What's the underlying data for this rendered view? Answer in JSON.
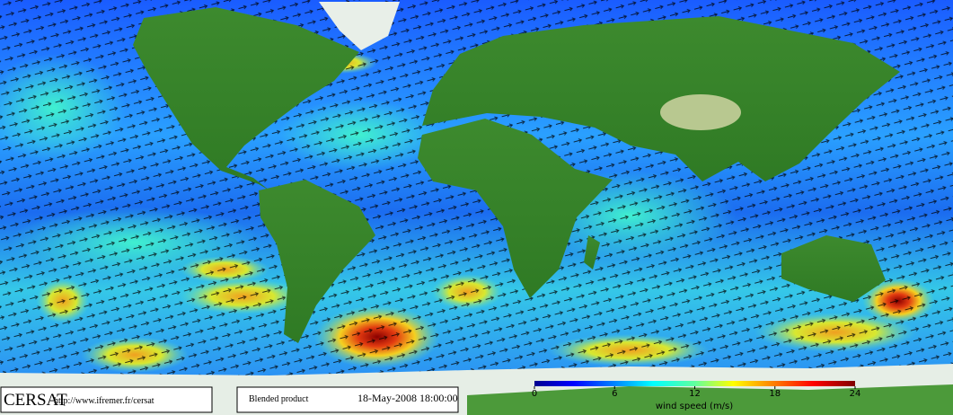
{
  "footer": {
    "logo": "CERSAT",
    "url": "http://www.ifremer.fr/cersat",
    "product": "Blended product",
    "date": "18-May-2008 18:00:00"
  },
  "colorbar": {
    "label": "wind speed (m/s)",
    "lim": [
      0,
      24
    ],
    "ticks": [
      0,
      6,
      12,
      18,
      24
    ]
  }
}
